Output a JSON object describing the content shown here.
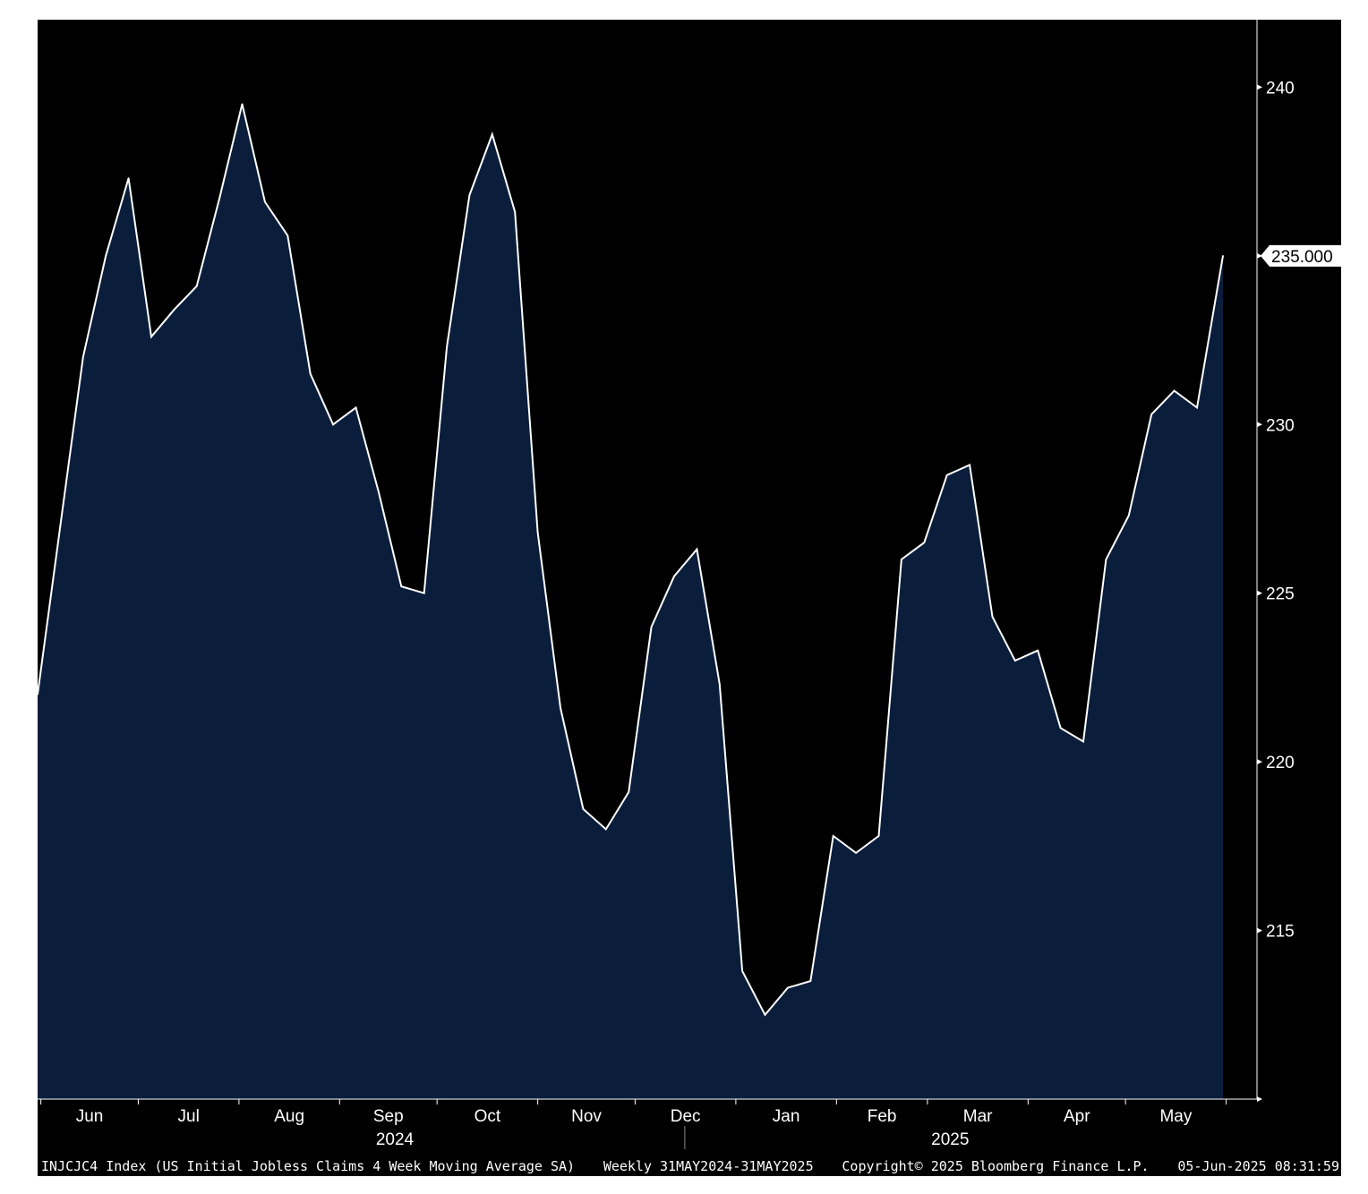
{
  "chart_data": {
    "type": "area",
    "ylim": [
      210,
      242
    ],
    "yticks": [
      215,
      220,
      225,
      230,
      235,
      240
    ],
    "last_value_label": "235.000",
    "x_month_labels": [
      "Jun",
      "Jul",
      "Aug",
      "Sep",
      "Oct",
      "Nov",
      "Dec",
      "Jan",
      "Feb",
      "Mar",
      "Apr",
      "May"
    ],
    "year_labels": [
      "2024",
      "2025"
    ],
    "x": [
      "2024-05-31",
      "2024-06-07",
      "2024-06-14",
      "2024-06-21",
      "2024-06-28",
      "2024-07-05",
      "2024-07-12",
      "2024-07-19",
      "2024-07-26",
      "2024-08-02",
      "2024-08-09",
      "2024-08-16",
      "2024-08-23",
      "2024-08-30",
      "2024-09-06",
      "2024-09-13",
      "2024-09-20",
      "2024-09-27",
      "2024-10-04",
      "2024-10-11",
      "2024-10-18",
      "2024-10-25",
      "2024-11-01",
      "2024-11-08",
      "2024-11-15",
      "2024-11-22",
      "2024-11-29",
      "2024-12-06",
      "2024-12-13",
      "2024-12-20",
      "2024-12-27",
      "2025-01-03",
      "2025-01-10",
      "2025-01-17",
      "2025-01-24",
      "2025-01-31",
      "2025-02-07",
      "2025-02-14",
      "2025-02-21",
      "2025-02-28",
      "2025-03-07",
      "2025-03-14",
      "2025-03-21",
      "2025-03-28",
      "2025-04-04",
      "2025-04-11",
      "2025-04-18",
      "2025-04-25",
      "2025-05-02",
      "2025-05-09",
      "2025-05-16",
      "2025-05-23",
      "2025-05-31"
    ],
    "values": [
      222.0,
      227.0,
      232.0,
      235.0,
      237.3,
      232.6,
      233.4,
      234.1,
      236.7,
      239.5,
      236.6,
      235.6,
      231.5,
      230.0,
      230.5,
      228.0,
      225.2,
      225.0,
      232.3,
      236.8,
      238.6,
      236.3,
      226.8,
      221.6,
      218.6,
      218.0,
      219.1,
      224.0,
      225.5,
      226.3,
      222.3,
      213.8,
      212.5,
      213.3,
      213.5,
      217.8,
      217.3,
      217.8,
      226.0,
      226.5,
      228.5,
      228.8,
      224.3,
      223.0,
      223.3,
      221.0,
      220.6,
      226.0,
      227.3,
      230.3,
      231.0,
      230.5,
      235.0
    ],
    "colors": {
      "background": "#000000",
      "area_fill": "#0a1e3c",
      "line": "#ffffff",
      "axis": "#ffffff"
    }
  },
  "footer": {
    "ticker": "INJCJC4 Index (US Initial Jobless Claims 4 Week Moving Average SA)",
    "range": "Weekly 31MAY2024-31MAY2025",
    "copyright": "Copyright© 2025 Bloomberg Finance L.P.",
    "timestamp": "05-Jun-2025 08:31:59"
  }
}
